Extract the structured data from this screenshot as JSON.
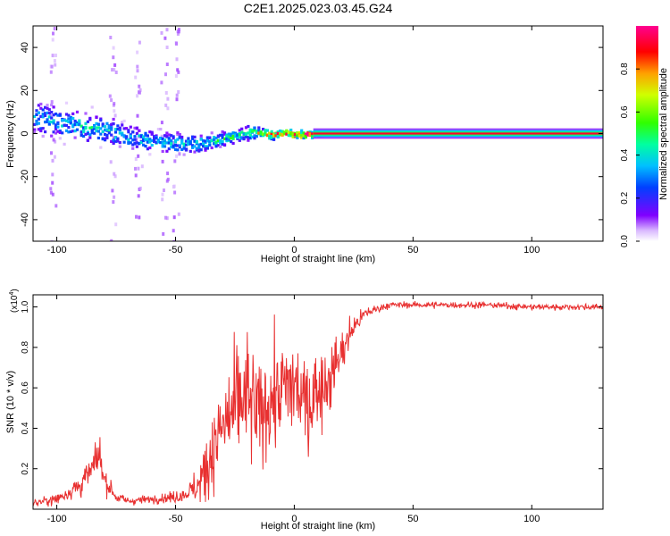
{
  "title": "C2E1.2025.023.03.45.G24",
  "chart_data": [
    {
      "type": "heatmap",
      "title": "C2E1.2025.023.03.45.G24",
      "xlabel": "Height of straight line (km)",
      "ylabel": "Frequency (Hz)",
      "xlim": [
        -110,
        130
      ],
      "ylim": [
        -50,
        50
      ],
      "xticks": [
        -100,
        -50,
        0,
        50,
        100
      ],
      "xtick_labels": [
        "-100",
        "-50",
        "0",
        "50",
        "100"
      ],
      "yticks": [
        -40,
        -20,
        0,
        20,
        40
      ],
      "ytick_labels": [
        "-40",
        "-20",
        "0",
        "20",
        "40"
      ],
      "colorbar": {
        "label": "Normalized spectral amplitude",
        "range": [
          0,
          1
        ],
        "ticks": [
          0.0,
          0.2,
          0.4,
          0.6,
          0.8
        ],
        "tick_labels": [
          "0.0",
          "0.2",
          "0.4",
          "0.6",
          "0.8"
        ],
        "colormap": "rainbow (white-violet-blue-cyan-green-yellow-red-magenta)"
      },
      "ridge": {
        "description": "dominant spectral ridge: center frequency (Hz) vs height (km)",
        "x": [
          -110,
          -100,
          -90,
          -80,
          -70,
          -60,
          -50,
          -40,
          -30,
          -20,
          -15,
          -10,
          -5,
          0,
          5,
          10,
          20,
          40,
          80,
          130
        ],
        "center": [
          8,
          6,
          4,
          2,
          -1,
          -3,
          -4,
          -4,
          -2,
          1,
          1,
          0,
          1,
          0,
          0,
          0,
          0,
          0,
          0,
          0
        ],
        "spread": [
          8,
          7,
          7,
          6,
          6,
          5,
          5,
          4,
          3,
          3,
          2,
          2,
          2,
          2,
          2,
          1,
          0.6,
          0.6,
          0.6,
          0.6
        ],
        "peak_amplitude": [
          0.35,
          0.35,
          0.4,
          0.4,
          0.35,
          0.35,
          0.35,
          0.4,
          0.45,
          0.5,
          0.7,
          0.75,
          0.8,
          0.85,
          0.9,
          0.95,
          0.95,
          0.95,
          0.95,
          0.95
        ]
      },
      "vertical_streaks_x": [
        -102,
        -77,
        -66,
        -55,
        -50
      ]
    },
    {
      "type": "line",
      "xlabel": "Height of straight line (km)",
      "ylabel": "SNR (10 * v/v)",
      "y_multiplier_label": "(x10",
      "y_multiplier_exponent": "4",
      "xlim": [
        -110,
        130
      ],
      "ylim": [
        0,
        1.06
      ],
      "xticks": [
        -100,
        -50,
        0,
        50,
        100
      ],
      "xtick_labels": [
        "-100",
        "-50",
        "0",
        "50",
        "100"
      ],
      "yticks": [
        0.2,
        0.4,
        0.6,
        0.8,
        1.0
      ],
      "ytick_labels": [
        "0.2",
        "0.4",
        "0.6",
        "0.8",
        "1.0"
      ],
      "color": "#e83030",
      "series": [
        {
          "x": [
            -110,
            -100,
            -90,
            -85,
            -82,
            -80,
            -75,
            -70,
            -60,
            -50,
            -45,
            -40,
            -35,
            -30,
            -25,
            -20,
            -15,
            -10,
            -5,
            0,
            5,
            10,
            15,
            20,
            25,
            30,
            40,
            60,
            80,
            100,
            120,
            130
          ],
          "y": [
            0.03,
            0.05,
            0.12,
            0.2,
            0.27,
            0.15,
            0.06,
            0.04,
            0.05,
            0.06,
            0.08,
            0.12,
            0.28,
            0.4,
            0.5,
            0.55,
            0.45,
            0.55,
            0.58,
            0.62,
            0.5,
            0.6,
            0.65,
            0.78,
            0.9,
            0.97,
            1.01,
            1.01,
            1.01,
            1.0,
            1.0,
            1.0
          ],
          "noise": [
            0.02,
            0.03,
            0.06,
            0.08,
            0.08,
            0.06,
            0.03,
            0.02,
            0.02,
            0.03,
            0.04,
            0.1,
            0.2,
            0.25,
            0.28,
            0.3,
            0.3,
            0.28,
            0.25,
            0.25,
            0.25,
            0.22,
            0.18,
            0.12,
            0.06,
            0.03,
            0.015,
            0.015,
            0.015,
            0.015,
            0.015,
            0.015
          ]
        }
      ]
    }
  ]
}
